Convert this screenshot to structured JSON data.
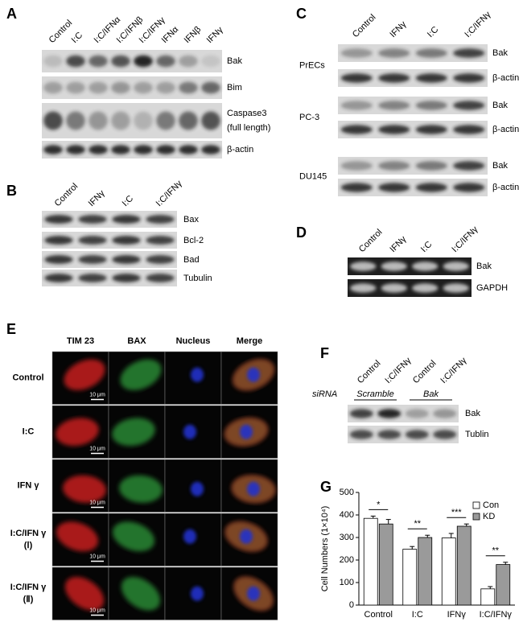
{
  "panels": {
    "A": {
      "label": "A",
      "columns": [
        "Control",
        "I:C",
        "I:C/IFNα",
        "I:C/IFNβ",
        "I:C/IFNγ",
        "IFNα",
        "IFNβ",
        "IFNγ"
      ],
      "rows": [
        "Bak",
        "Bim",
        "Caspase3",
        "β-actin"
      ],
      "row_note": "(full length)"
    },
    "B": {
      "label": "B",
      "columns": [
        "Control",
        "IFNγ",
        "I:C",
        "I:C/IFNγ"
      ],
      "rows": [
        "Bax",
        "Bcl-2",
        "Bad",
        "Tubulin"
      ]
    },
    "C": {
      "label": "C",
      "columns": [
        "Control",
        "IFNγ",
        "I:C",
        "I:C/IFNγ"
      ],
      "groups": [
        {
          "cell": "PrECs",
          "rows": [
            "Bak",
            "β-actin"
          ]
        },
        {
          "cell": "PC-3",
          "rows": [
            "Bak",
            "β-actin"
          ]
        },
        {
          "cell": "DU145",
          "rows": [
            "Bak",
            "β-actin"
          ]
        }
      ]
    },
    "D": {
      "label": "D",
      "columns": [
        "Control",
        "IFNγ",
        "I:C",
        "I:C/IFNγ"
      ],
      "rows": [
        "Bak",
        "GAPDH"
      ]
    },
    "E": {
      "label": "E",
      "columns": [
        "TIM 23",
        "BAX",
        "Nucleus",
        "Merge"
      ],
      "rows": [
        [
          "Control"
        ],
        [
          "I:C"
        ],
        [
          "IFN γ"
        ],
        [
          "I:C/IFN γ",
          "(Ⅰ)"
        ],
        [
          "I:C/IFN γ",
          "(Ⅱ)"
        ]
      ],
      "scale_bar": "10 μm"
    },
    "F": {
      "label": "F",
      "columns": [
        "Control",
        "I:C/IFNγ",
        "Control",
        "I:C/IFNγ"
      ],
      "siRNA": "siRNA",
      "groups": [
        "Scramble",
        "Bak"
      ],
      "rows": [
        "Bak",
        "Tublin"
      ]
    },
    "G": {
      "label": "G"
    }
  },
  "chart_data": {
    "type": "bar",
    "y_label": "Cell Numbers (1×10⁴)",
    "categories": [
      "Control",
      "I:C",
      "IFNγ",
      "I:C/IFNγ"
    ],
    "series": [
      {
        "name": "Con",
        "color": "#ffffff",
        "values": [
          385,
          248,
          298,
          72
        ],
        "errors": [
          10,
          12,
          20,
          10
        ]
      },
      {
        "name": "KD",
        "color": "#9a9a9a",
        "values": [
          360,
          300,
          350,
          180
        ],
        "errors": [
          20,
          10,
          10,
          10
        ]
      }
    ],
    "annotations": [
      "*",
      "**",
      "***",
      "**"
    ],
    "ylim": [
      0,
      500
    ],
    "yticks": [
      0,
      100,
      200,
      300,
      400,
      500
    ],
    "legend": "top-right"
  }
}
